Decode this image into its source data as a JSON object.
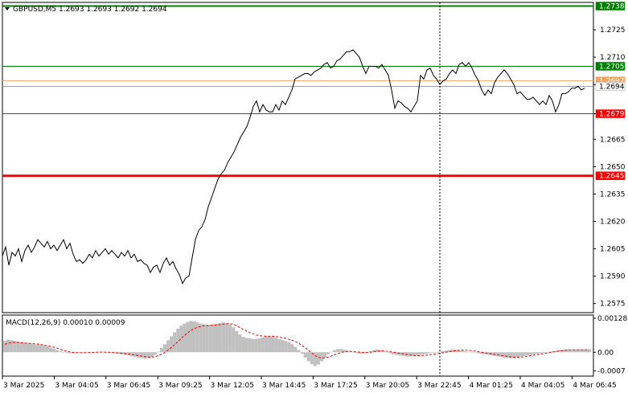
{
  "window": {
    "header": "GBPUSD,M5  1.2693 1.2693 1.2692 1.2694",
    "header_icon": "triangle-down-icon"
  },
  "colors": {
    "background": "#ffffff",
    "price_line": "#000000",
    "resistance": "#008000",
    "support": "#ff0000",
    "bid": "#a0a0a0",
    "ask": "#f4a460",
    "macd_hist": "#c0c0c0",
    "macd_signal": "#ff0000",
    "vline": "#000000",
    "label_text_light": "#ffffff",
    "label_text_dark": "#000000"
  },
  "chart_data": [
    {
      "type": "line",
      "title": "GBPUSD,M5",
      "series": [
        {
          "name": "GBPUSD,M5",
          "x": [
            0,
            4,
            8,
            12,
            16,
            20,
            24,
            28,
            32,
            36,
            40,
            44,
            48,
            52,
            56,
            60,
            64,
            68,
            72,
            76,
            80,
            84,
            88,
            92,
            96,
            100,
            104,
            108,
            112,
            116,
            120,
            124,
            128,
            132,
            136,
            140,
            144,
            148,
            152,
            156,
            160,
            164,
            168,
            172,
            176,
            180,
            184,
            188,
            192,
            196,
            200,
            204,
            208,
            212,
            216,
            220,
            224,
            228,
            232,
            236,
            240,
            244,
            248,
            252,
            256,
            260,
            264,
            268,
            272,
            276,
            280,
            284,
            288,
            292,
            296,
            300,
            304,
            308,
            312,
            316,
            320,
            324,
            328,
            332,
            336,
            340,
            344,
            348,
            352,
            356,
            360,
            364,
            368,
            372,
            376,
            380,
            384,
            388,
            392,
            396,
            400,
            404,
            408,
            412,
            416,
            420,
            424,
            428,
            432,
            436,
            440,
            444,
            448,
            452,
            456,
            460,
            464,
            468,
            472,
            476,
            480,
            484,
            488,
            492,
            496,
            500,
            504,
            508,
            512,
            516,
            520,
            524,
            528,
            532,
            536,
            540,
            544,
            548,
            552,
            556,
            560,
            564,
            568,
            572,
            576,
            580,
            584,
            588,
            592,
            596,
            600,
            604,
            608,
            612,
            616,
            620,
            624,
            628,
            632,
            636,
            640,
            644,
            648,
            652,
            656,
            660,
            664,
            668,
            672,
            676,
            680,
            684,
            688,
            692,
            696,
            700,
            704,
            708,
            712,
            716,
            720,
            724
          ],
          "values": [
            1.2601,
            1.2606,
            1.2596,
            1.2603,
            1.2601,
            1.2605,
            1.2598,
            1.2604,
            1.2607,
            1.2603,
            1.2606,
            1.261,
            1.2608,
            1.2606,
            1.2609,
            1.2605,
            1.2607,
            1.2604,
            1.2607,
            1.261,
            1.2605,
            1.2608,
            1.2602,
            1.2598,
            1.2599,
            1.2597,
            1.2599,
            1.2602,
            1.26,
            1.2604,
            1.2601,
            1.2603,
            1.2605,
            1.2602,
            1.2604,
            1.2602,
            1.26,
            1.2603,
            1.2601,
            1.2604,
            1.26,
            1.2602,
            1.2598,
            1.2599,
            1.2597,
            1.2596,
            1.2592,
            1.2595,
            1.2596,
            1.2592,
            1.2597,
            1.26,
            1.2596,
            1.2598,
            1.2594,
            1.2591,
            1.2586,
            1.2589,
            1.259,
            1.26,
            1.261,
            1.2615,
            1.2617,
            1.2621,
            1.2628,
            1.2633,
            1.2638,
            1.2643,
            1.2646,
            1.2648,
            1.2652,
            1.2655,
            1.2658,
            1.2662,
            1.2666,
            1.2669,
            1.2672,
            1.2677,
            1.2683,
            1.2686,
            1.268,
            1.2684,
            1.2681,
            1.268,
            1.268,
            1.2684,
            1.2681,
            1.2686,
            1.2684,
            1.2688,
            1.2692,
            1.2698,
            1.2699,
            1.27,
            1.2701,
            1.2701,
            1.27,
            1.2702,
            1.2703,
            1.2704,
            1.2706,
            1.2707,
            1.2704,
            1.2705,
            1.2708,
            1.2709,
            1.2711,
            1.2713,
            1.2713,
            1.2714,
            1.2712,
            1.271,
            1.2705,
            1.2701,
            1.2705,
            1.2705,
            1.2705,
            1.2704,
            1.2706,
            1.2703,
            1.27,
            1.2692,
            1.2682,
            1.2686,
            1.2685,
            1.2683,
            1.2682,
            1.268,
            1.2683,
            1.2686,
            1.27,
            1.2698,
            1.2703,
            1.2704,
            1.27,
            1.2698,
            1.2695,
            1.2697,
            1.2698,
            1.2701,
            1.2703,
            1.2701,
            1.2706,
            1.2707,
            1.2705,
            1.2707,
            1.2704,
            1.27,
            1.2697,
            1.2692,
            1.2689,
            1.2692,
            1.269,
            1.2696,
            1.2699,
            1.2701,
            1.2703,
            1.2701,
            1.2698,
            1.2695,
            1.269,
            1.2691,
            1.2689,
            1.2687,
            1.2687,
            1.2688,
            1.2686,
            1.2684,
            1.2686,
            1.2684,
            1.2689,
            1.2686,
            1.268,
            1.2684,
            1.269,
            1.269,
            1.2691,
            1.2693,
            1.2693,
            1.2694,
            1.2692,
            1.2693
          ]
        }
      ],
      "ylim": [
        1.257,
        1.274
      ],
      "y_ticks": [
        "1.2725",
        "1.2710",
        "1.2695",
        "1.2679",
        "1.2665",
        "1.2650",
        "1.2635",
        "1.2620",
        "1.2605",
        "1.2590",
        "1.2575"
      ],
      "levels": [
        {
          "value": 1.2738,
          "label": "1.2738",
          "kind": "resistance",
          "width": 2
        },
        {
          "value": 1.2705,
          "label": "1.2705",
          "kind": "resistance",
          "width": 1
        },
        {
          "value": 1.2697,
          "label": "1.2697",
          "kind": "ask",
          "width": 1
        },
        {
          "value": 1.2694,
          "label": "1.2694",
          "kind": "bid",
          "width": 1
        },
        {
          "value": 1.2679,
          "label": "1.2679",
          "kind": "support",
          "width": 1
        },
        {
          "value": 1.2645,
          "label": "1.2645",
          "kind": "support",
          "width": 3
        }
      ],
      "vertical_marker_x": 544,
      "grid": false
    },
    {
      "type": "bar",
      "title": "MACD(12,26,9) 0.00010 0.00009",
      "ylim": [
        -0.0009,
        0.0014
      ],
      "y_ticks": [
        "0.00128",
        "0.00",
        "-0.0007"
      ],
      "histogram": [
        0.00043,
        0.00048,
        0.00046,
        0.00043,
        0.0004,
        0.00038,
        0.00036,
        0.00034,
        0.00032,
        0.0003,
        0.00029,
        0.00027,
        0.00025,
        0.00022,
        0.00018,
        0.00013,
        8e-05,
        3e-05,
        -1e-05,
        -3e-05,
        -4e-05,
        -4e-05,
        -3e-05,
        -2e-05,
        -2e-05,
        -1e-05,
        -1e-05,
        0.0,
        1e-05,
        2e-05,
        1e-05,
        0.0,
        -2e-05,
        -3e-05,
        -5e-05,
        -6e-05,
        -8e-05,
        -0.0001,
        -0.00012,
        -0.00015,
        -0.00018,
        -0.0002,
        -0.00022,
        -0.00024,
        -0.00022,
        -0.00018,
        -0.0001,
        2e-05,
        0.00016,
        0.0003,
        0.00045,
        0.0006,
        0.00075,
        0.00089,
        0.001,
        0.00108,
        0.00114,
        0.00118,
        0.00116,
        0.00112,
        0.00108,
        0.00106,
        0.00104,
        0.00103,
        0.00105,
        0.00107,
        0.0011,
        0.00112,
        0.0011,
        0.00104,
        0.00094,
        0.0008,
        0.00066,
        0.00058,
        0.00054,
        0.00052,
        0.0005,
        0.0005,
        0.00052,
        0.00056,
        0.00058,
        0.0006,
        0.00058,
        0.00054,
        0.0005,
        0.00046,
        0.00042,
        0.00038,
        0.0003,
        0.0002,
        8e-05,
        -6e-05,
        -0.0002,
        -0.00034,
        -0.00045,
        -0.00052,
        -0.00046,
        -0.00034,
        -0.0002,
        -8e-05,
        2e-05,
        8e-05,
        0.00012,
        0.00012,
        0.0001,
        6e-05,
        2e-05,
        -2e-05,
        -4e-05,
        -6e-05,
        -4e-05,
        0.0,
        4e-05,
        8e-05,
        0.0001,
        8e-05,
        4e-05,
        0.0,
        -4e-05,
        -8e-05,
        -0.0001,
        -0.00012,
        -0.00014,
        -0.00016,
        -0.00016,
        -0.00014,
        -0.00012,
        -0.0001,
        -8e-05,
        -6e-05,
        -4e-05,
        -2e-05,
        0.0,
        2e-05,
        4e-05,
        6e-05,
        8e-05,
        0.0001,
        0.0001,
        8e-05,
        6e-05,
        4e-05,
        2e-05,
        0.0,
        -2e-05,
        -4e-05,
        -6e-05,
        -8e-05,
        -0.0001,
        -0.00012,
        -0.00014,
        -0.00016,
        -0.00018,
        -0.0002,
        -0.00022,
        -0.00022,
        -0.0002,
        -0.00018,
        -0.00016,
        -0.00014,
        -0.00012,
        -0.0001,
        -8e-05,
        -6e-05,
        -4e-05,
        -2e-05,
        0.0,
        2e-05,
        4e-05,
        6e-05,
        8e-05,
        0.0001,
        0.0001,
        9e-05,
        9e-05,
        0.0001,
        0.0001,
        0.0001,
        0.0001,
        0.0001
      ],
      "signal": [
        0.0003,
        0.00034,
        0.00036,
        0.00037,
        0.00037,
        0.00036,
        0.00035,
        0.00034,
        0.00033,
        0.00032,
        0.00031,
        0.00029,
        0.00027,
        0.00025,
        0.00022,
        0.00019,
        0.00015,
        0.00011,
        7e-05,
        4e-05,
        1e-05,
        -1e-05,
        -2e-05,
        -2e-05,
        -2e-05,
        -2e-05,
        -1e-05,
        -1e-05,
        0.0,
        0.0,
        1e-05,
        0.0,
        0.0,
        -1e-05,
        -2e-05,
        -3e-05,
        -4e-05,
        -6e-05,
        -7e-05,
        -9e-05,
        -0.00011,
        -0.00013,
        -0.00015,
        -0.00017,
        -0.00018,
        -0.00018,
        -0.00017,
        -0.00013,
        -8e-05,
        -1e-05,
        8e-05,
        0.00018,
        0.00029,
        0.0004,
        0.00052,
        0.00063,
        0.00073,
        0.00082,
        0.00089,
        0.00094,
        0.00097,
        0.00099,
        0.001,
        0.00101,
        0.00102,
        0.00103,
        0.00104,
        0.00106,
        0.00107,
        0.00107,
        0.00105,
        0.001,
        0.00093,
        0.00086,
        0.0008,
        0.00074,
        0.00069,
        0.00065,
        0.00062,
        0.00061,
        0.0006,
        0.0006,
        0.0006,
        0.00059,
        0.00057,
        0.00055,
        0.00052,
        0.00049,
        0.00045,
        0.0004,
        0.00034,
        0.00026,
        0.00017,
        7e-05,
        -3e-05,
        -0.00013,
        -0.00019,
        -0.00022,
        -0.00021,
        -0.00018,
        -0.00014,
        -9e-05,
        -5e-05,
        -1e-05,
        2e-05,
        3e-05,
        3e-05,
        2e-05,
        1e-05,
        0.0,
        -1e-05,
        -1e-05,
        0.0,
        2e-05,
        4e-05,
        5e-05,
        5e-05,
        4e-05,
        2e-05,
        0.0,
        -2e-05,
        -4e-05,
        -6e-05,
        -8e-05,
        -0.0001,
        -0.00012,
        -0.00013,
        -0.00013,
        -0.00012,
        -0.00011,
        -0.0001,
        -8e-05,
        -6e-05,
        -4e-05,
        -2e-05,
        0.0,
        2e-05,
        4e-05,
        6e-05,
        7e-05,
        8e-05,
        8e-05,
        7e-05,
        6e-05,
        4e-05,
        2e-05,
        0.0,
        -2e-05,
        -4e-05,
        -6e-05,
        -8e-05,
        -0.0001,
        -0.00012,
        -0.00014,
        -0.00016,
        -0.00018,
        -0.00019,
        -0.00019,
        -0.00018,
        -0.00017,
        -0.00015,
        -0.00013,
        -0.00011,
        -9e-05,
        -7e-05,
        -5e-05,
        -3e-05,
        -1e-05,
        1e-05,
        3e-05,
        5e-05,
        7e-05,
        8e-05,
        9e-05,
        9e-05,
        9e-05,
        9e-05,
        9e-05,
        9e-05,
        9e-05
      ]
    }
  ],
  "x_axis": {
    "labels": [
      "3 Mar 2025",
      "3 Mar 04:05",
      "3 Mar 06:45",
      "3 Mar 09:25",
      "3 Mar 12:05",
      "3 Mar 14:45",
      "3 Mar 17:25",
      "3 Mar 20:05",
      "3 Mar 22:45",
      "4 Mar 01:25",
      "4 Mar 04:05",
      "4 Mar 06:45"
    ]
  }
}
